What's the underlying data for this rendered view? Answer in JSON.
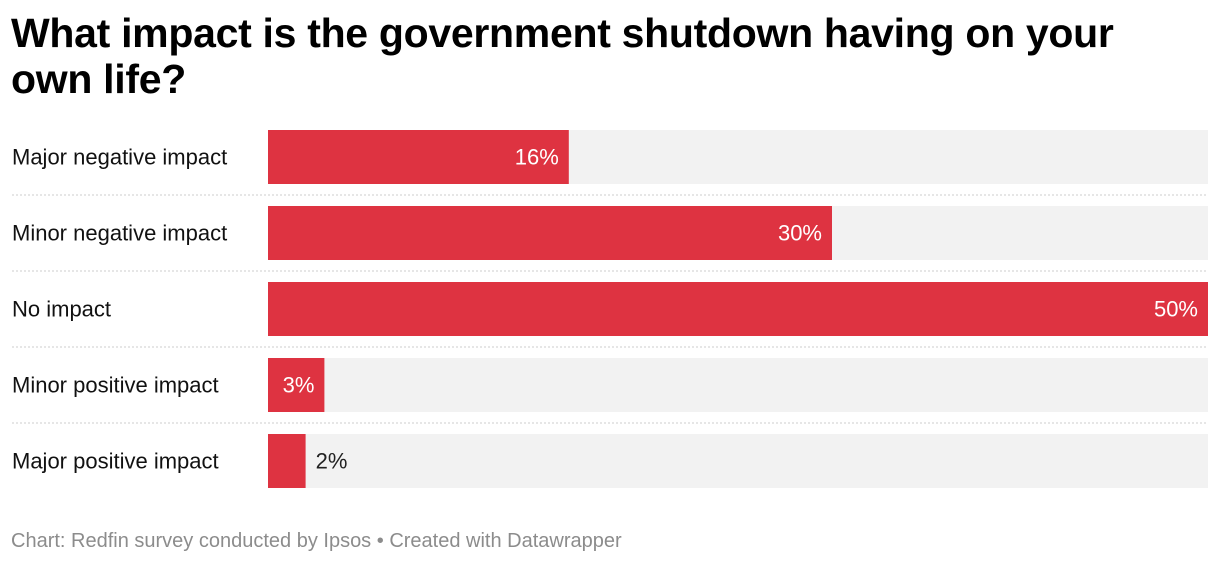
{
  "colors": {
    "bar": "#de3341",
    "track": "#f2f2f2",
    "label_inside": "#ffffff",
    "label_outside": "#222222",
    "divider": "#cccccc"
  },
  "chart_data": {
    "type": "bar",
    "orientation": "horizontal",
    "title": "What impact is the government shutdown having on your own life?",
    "categories": [
      "Major negative impact",
      "Minor negative impact",
      "No impact",
      "Minor positive impact",
      "Major positive impact"
    ],
    "values": [
      16,
      30,
      50,
      3,
      2
    ],
    "value_labels": [
      "16%",
      "30%",
      "50%",
      "3%",
      "2%"
    ],
    "xlim": [
      0,
      50
    ],
    "unit": "%",
    "grid": false,
    "legend": "none"
  },
  "footer": {
    "source": "Chart: Redfin survey conducted by Ipsos",
    "separator": "•",
    "credit": "Created with Datawrapper"
  }
}
